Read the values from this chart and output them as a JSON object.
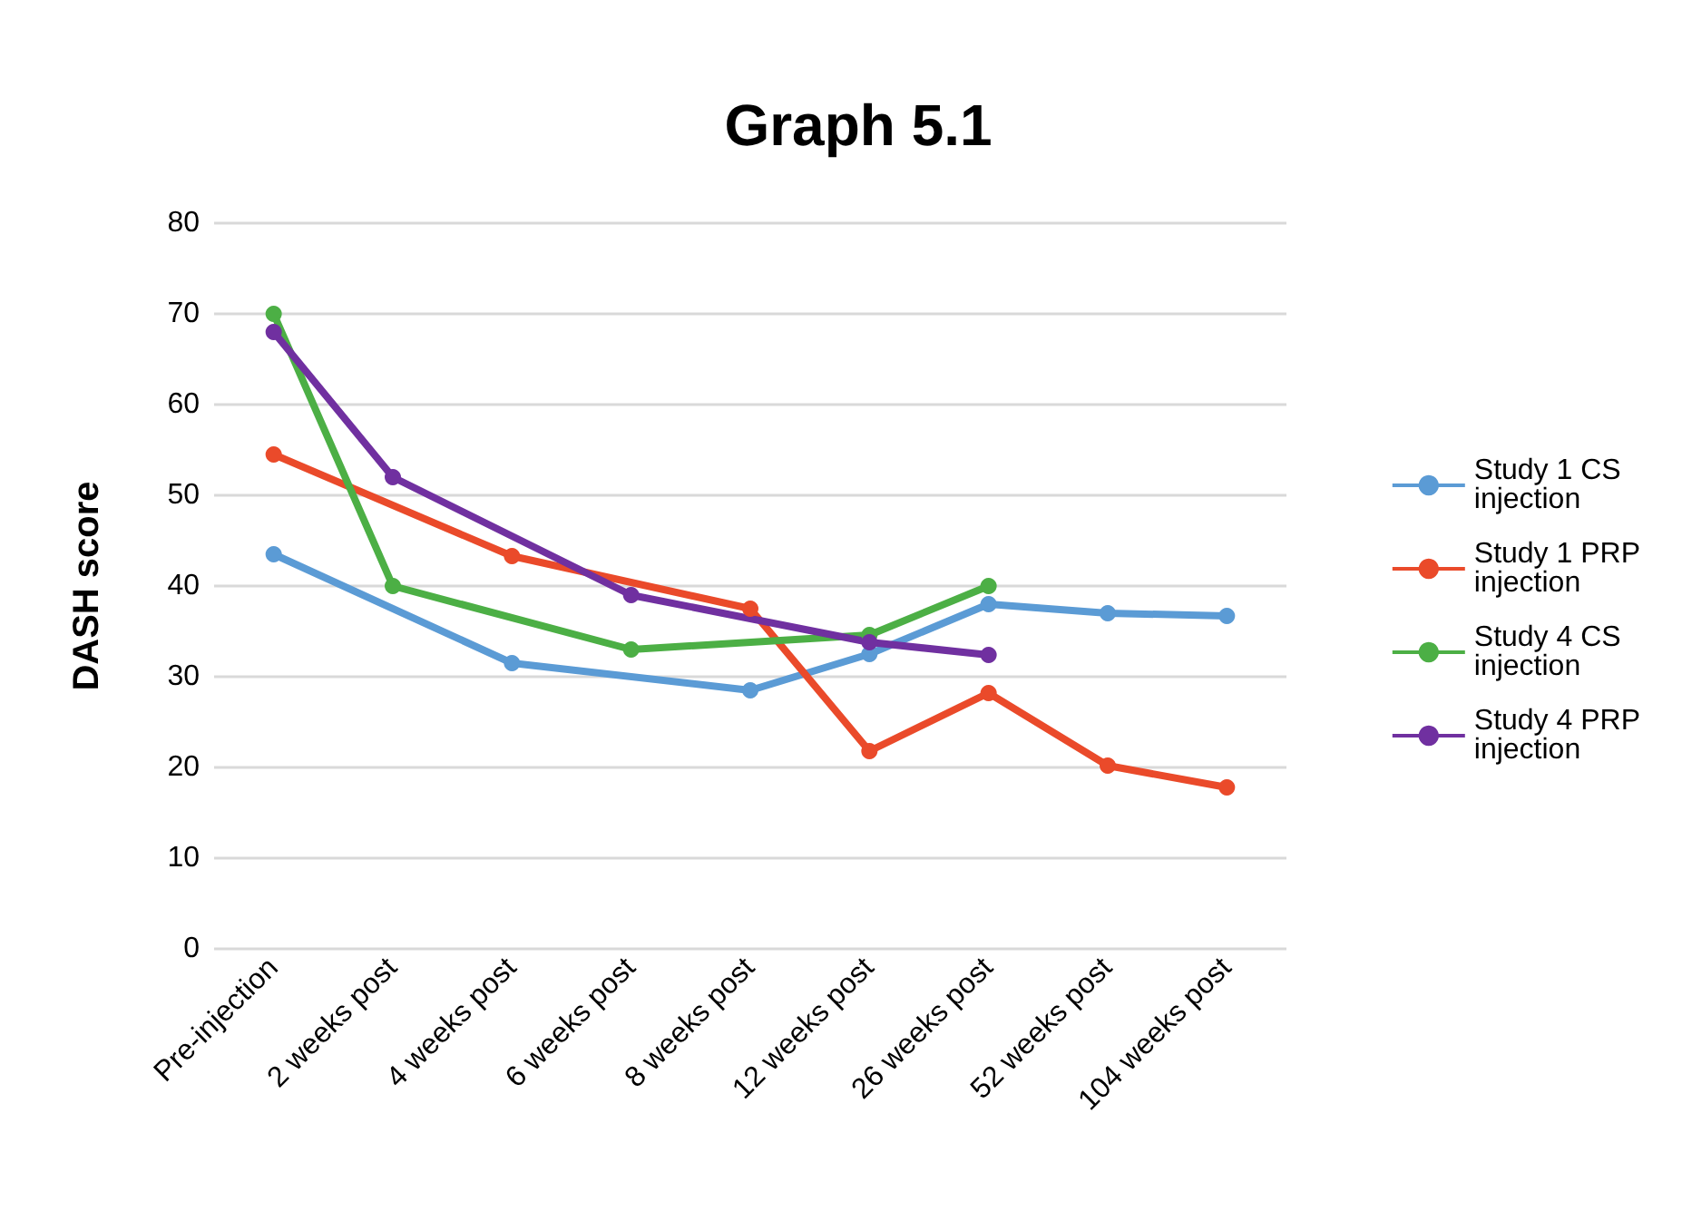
{
  "chart_data": {
    "type": "line",
    "title": "Graph 5.1",
    "ylabel": "DASH score",
    "categories": [
      "Pre-injection",
      "2 weeks post",
      "4 weeks post",
      "6 weeks post",
      "8 weeks post",
      "12 weeks post",
      "26 weeks post",
      "52 weeks post",
      "104 weeks post"
    ],
    "series": [
      {
        "name": "Study 1 CS injection",
        "color": "#5b9bd5",
        "values": [
          43.5,
          null,
          31.5,
          null,
          28.5,
          32.5,
          38,
          37,
          36.7
        ]
      },
      {
        "name": "Study 1 PRP injection",
        "color": "#ea4a2a",
        "values": [
          54.5,
          null,
          43.3,
          null,
          37.5,
          21.8,
          28.2,
          20.2,
          17.8
        ]
      },
      {
        "name": "Study 4 CS injection",
        "color": "#4caf45",
        "values": [
          70,
          40,
          null,
          33,
          null,
          34.6,
          40,
          null,
          null
        ]
      },
      {
        "name": "Study 4 PRP injection",
        "color": "#7030a0",
        "values": [
          68,
          52,
          null,
          39,
          null,
          33.8,
          32.4,
          null,
          null
        ]
      }
    ],
    "ylim": [
      0,
      80
    ],
    "yticks": [
      0,
      10,
      20,
      30,
      40,
      50,
      60,
      70,
      80
    ],
    "grid": "y",
    "legend": "right",
    "marker": "circle"
  }
}
